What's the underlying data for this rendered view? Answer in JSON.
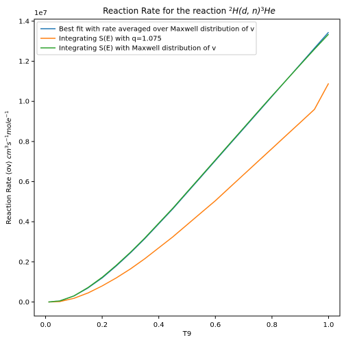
{
  "chart_data": {
    "type": "line",
    "title_prefix": "Reaction Rate for the reaction ",
    "title_reaction": {
      "sup1": "2",
      "main": "H(d, n)",
      "sup2": "3",
      "end": "He"
    },
    "xlabel": "T9",
    "ylabel": {
      "prefix": "Reaction Rate ⟨σv⟩ ",
      "units": [
        {
          "text": "cm",
          "sup": "3"
        },
        {
          "text": "s",
          "sup": "−1"
        },
        {
          "text": "mole",
          "sup": "−1"
        }
      ]
    },
    "y_multiplier": "1e7",
    "xlim": [
      -0.04,
      1.04
    ],
    "ylim": [
      -0.07,
      1.41
    ],
    "x_ticks": [
      0.0,
      0.2,
      0.4,
      0.6,
      0.8,
      1.0
    ],
    "x_tick_labels": [
      "0.0",
      "0.2",
      "0.4",
      "0.6",
      "0.8",
      "1.0"
    ],
    "y_ticks": [
      0.0,
      0.2,
      0.4,
      0.6,
      0.8,
      1.0,
      1.2,
      1.4
    ],
    "y_tick_labels": [
      "0.0",
      "0.2",
      "0.4",
      "0.6",
      "0.8",
      "1.0",
      "1.2",
      "1.4"
    ],
    "grid": false,
    "legend_position": "top-left",
    "x": [
      0.01,
      0.05,
      0.1,
      0.15,
      0.2,
      0.25,
      0.3,
      0.35,
      0.4,
      0.45,
      0.5,
      0.55,
      0.6,
      0.65,
      0.7,
      0.75,
      0.8,
      0.85,
      0.9,
      0.95,
      1.0
    ],
    "series": [
      {
        "name": "Best fit with rate averaged over Maxwell distribution of v",
        "color": "#1f77b4",
        "values": [
          0.0,
          0.005,
          0.03,
          0.07,
          0.12,
          0.18,
          0.245,
          0.315,
          0.39,
          0.465,
          0.545,
          0.625,
          0.705,
          0.785,
          0.865,
          0.945,
          1.025,
          1.105,
          1.185,
          1.265,
          1.345
        ]
      },
      {
        "name": "Integrating S(E) with q=1.075",
        "color": "#ff7f0e",
        "values": [
          0.0,
          0.002,
          0.018,
          0.045,
          0.08,
          0.12,
          0.165,
          0.215,
          0.27,
          0.325,
          0.385,
          0.445,
          0.505,
          0.57,
          0.635,
          0.7,
          0.765,
          0.83,
          0.895,
          0.96,
          1.09
        ]
      },
      {
        "name": "Integrating S(E) with Maxwell distribution of v",
        "color": "#2ca02c",
        "values": [
          0.0,
          0.005,
          0.03,
          0.072,
          0.123,
          0.183,
          0.248,
          0.318,
          0.393,
          0.468,
          0.548,
          0.628,
          0.708,
          0.788,
          0.868,
          0.948,
          1.027,
          1.105,
          1.183,
          1.26,
          1.335
        ]
      }
    ]
  }
}
